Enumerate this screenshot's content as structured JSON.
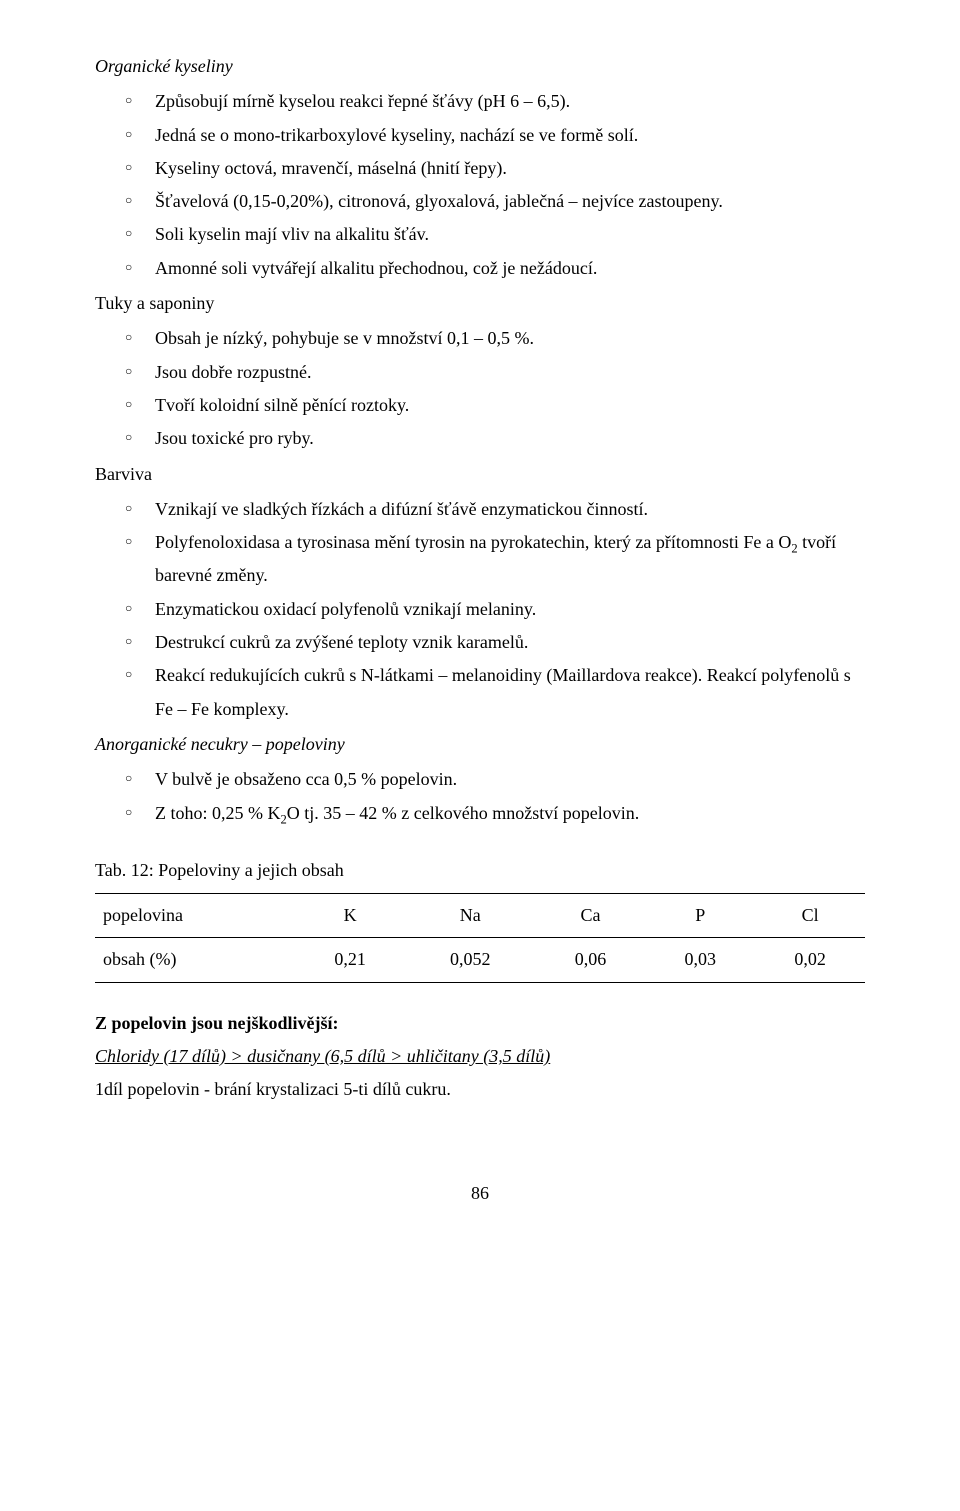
{
  "s1": {
    "title": "Organické kyseliny",
    "items": [
      "Způsobují mírně kyselou reakci řepné šťávy (pH 6 – 6,5).",
      "Jedná se o mono-trikarboxylové kyseliny, nachází se ve formě solí.",
      "Kyseliny octová, mravenčí, máselná (hnití řepy).",
      "Šťavelová (0,15-0,20%), citronová, glyoxalová, jablečná – nejvíce zastoupeny.",
      "Soli kyselin mají vliv na alkalitu šťáv.",
      "Amonné soli vytvářejí alkalitu přechodnou, což je nežádoucí."
    ]
  },
  "s2": {
    "title": "Tuky a saponiny",
    "items": [
      "Obsah je nízký, pohybuje se v množství 0,1 – 0,5 %.",
      "Jsou dobře rozpustné.",
      "Tvoří koloidní silně pěnící roztoky.",
      "Jsou toxické pro ryby."
    ]
  },
  "s3": {
    "title": "Barviva",
    "items": {
      "b0": "Vznikají ve sladkých řízkách  a difúzní šťávě enzymatickou činností.",
      "b1_a": "Polyfenoloxidasa a tyrosinasa mění tyrosin na pyrokatechin, který za přítomnosti Fe a O",
      "b1_b": " tvoří barevné změny.",
      "b2": "Enzymatickou oxidací polyfenolů vznikají melaniny.",
      "b3": "Destrukcí cukrů za zvýšené teploty vznik karamelů.",
      "b4": "Reakcí redukujících cukrů s N-látkami – melanoidiny (Maillardova reakce). Reakcí polyfenolů s Fe – Fe komplexy."
    }
  },
  "s4": {
    "title": "Anorganické necukry – popeloviny",
    "items": {
      "p0": "V bulvě je obsaženo cca 0,5 % popelovin.",
      "p1_a": "Z toho: 0,25 % K",
      "p1_b": "O  tj. 35 – 42 % z celkového množství popelovin."
    }
  },
  "table": {
    "caption": "Tab. 12: Popeloviny a jejich obsah",
    "headers": [
      "popelovina",
      "K",
      "Na",
      "Ca",
      "P",
      "Cl"
    ],
    "row": [
      "obsah (%)",
      "0,21",
      "0,052",
      "0,06",
      "0,03",
      "0,02"
    ]
  },
  "bottom": {
    "line1": "Z popelovin jsou nejškodlivější:",
    "line2": "Chloridy (17 dílů) > dusičnany (6,5 dílů > uhličitany (3,5 dílů)",
    "line3": "1díl popelovin  -  brání krystalizaci 5-ti dílů cukru."
  },
  "pagenum": "86"
}
